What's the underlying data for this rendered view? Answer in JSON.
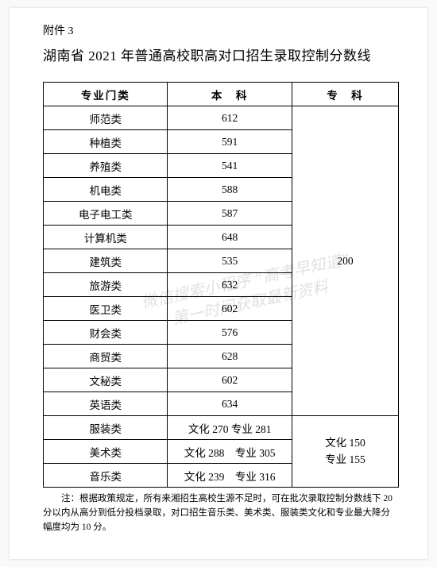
{
  "attachment": "附件 3",
  "title": "湖南省 2021 年普通高校职高对口招生录取控制分数线",
  "headers": {
    "category": "专业门类",
    "benke": "本　科",
    "zhuanke": "专　科"
  },
  "group1": {
    "rows": [
      {
        "cat": "师范类",
        "bk": "612"
      },
      {
        "cat": "种植类",
        "bk": "591"
      },
      {
        "cat": "养殖类",
        "bk": "541"
      },
      {
        "cat": "机电类",
        "bk": "588"
      },
      {
        "cat": "电子电工类",
        "bk": "587"
      },
      {
        "cat": "计算机类",
        "bk": "648"
      },
      {
        "cat": "建筑类",
        "bk": "535"
      },
      {
        "cat": "旅游类",
        "bk": "632"
      },
      {
        "cat": "医卫类",
        "bk": "602"
      },
      {
        "cat": "财会类",
        "bk": "576"
      },
      {
        "cat": "商贸类",
        "bk": "628"
      },
      {
        "cat": "文秘类",
        "bk": "602"
      },
      {
        "cat": "英语类",
        "bk": "634"
      }
    ],
    "zk": "200"
  },
  "group2": {
    "rows": [
      {
        "cat": "服装类",
        "bk": "文化 270  专业 281"
      },
      {
        "cat": "美术类",
        "bk": "文化 288　专业 305"
      },
      {
        "cat": "音乐类",
        "bk": "文化 239　专业 316"
      }
    ],
    "zk_line1": "文化 150",
    "zk_line2": "专业 155"
  },
  "footnote": "注：根据政策规定，所有来湘招生高校生源不足时，可在批次录取控制分数线下 20 分以内从高分到低分投档录取，对口招生音乐类、美术类、服装类文化和专业最大降分幅度均为 10 分。",
  "watermark_line1": "微信搜索小程序 “高考早知道”",
  "watermark_line2": "第一时间获取最新资料"
}
